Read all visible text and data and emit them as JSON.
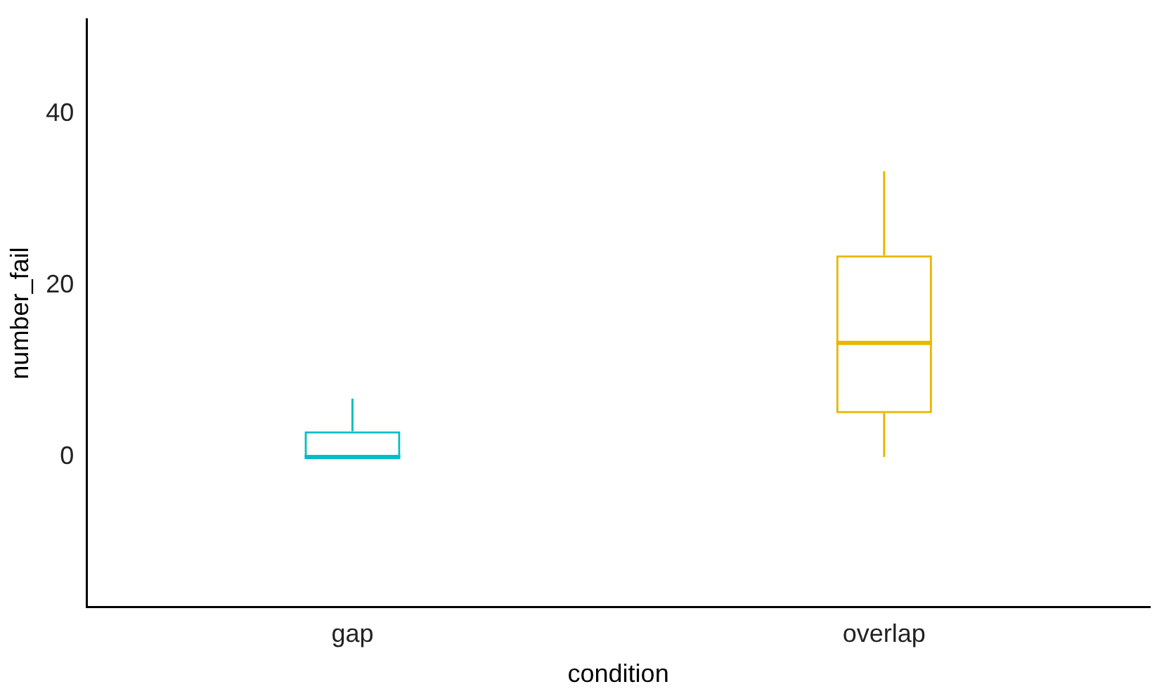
{
  "chart_data": {
    "type": "box",
    "xlabel": "condition",
    "ylabel": "number_fail",
    "categories": [
      "gap",
      "overlap"
    ],
    "colors": [
      "#00bfc4",
      "#e7b800"
    ],
    "boxes": [
      {
        "low": 0,
        "q1": 0,
        "median": 0,
        "q3": 3,
        "high": 6.8
      },
      {
        "low": 0,
        "q1": 5.1,
        "median": 13.3,
        "q3": 23.5,
        "high": 33.3
      }
    ],
    "ylim": [
      -17.5,
      51
    ],
    "yticks": [
      0,
      20,
      40
    ]
  }
}
